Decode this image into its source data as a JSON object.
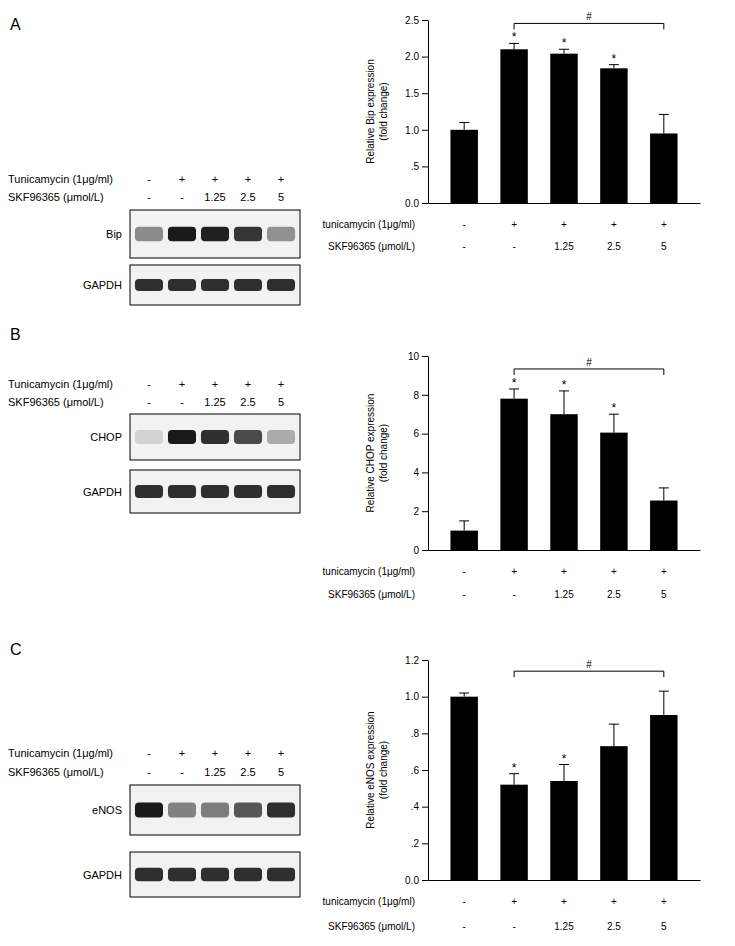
{
  "chart_data": [
    {
      "type": "bar",
      "title": "A",
      "color": "#000000",
      "ylabel": [
        "Relative Bip expression",
        "(fold change)"
      ],
      "categories": [
        null,
        null,
        null,
        null,
        null
      ],
      "values": [
        1.0,
        2.1,
        2.04,
        1.84,
        0.95
      ],
      "errors": [
        0.1,
        0.08,
        0.06,
        0.05,
        0.26
      ],
      "significance": [
        null,
        "*",
        "*",
        "*",
        null
      ],
      "comparison": {
        "from": 1,
        "to": 4,
        "label": "#"
      },
      "ylim": [
        0,
        2.5
      ],
      "yticks": [
        {
          "value": 0,
          "label": "0.0"
        },
        {
          "value": 0.5,
          "label": ".5"
        },
        {
          "value": 1,
          "label": "1.0"
        },
        {
          "value": 1.5,
          "label": "1.5"
        },
        {
          "value": 2,
          "label": "2.0"
        },
        {
          "value": 2.5,
          "label": "2.5"
        }
      ],
      "treatments": [
        {
          "label": "tunicamycin (1μg/ml)",
          "values": [
            "-",
            "+",
            "+",
            "+",
            "+"
          ]
        },
        {
          "label": "SKF96365 (μmol/L)",
          "values": [
            "-",
            "-",
            "1.25",
            "2.5",
            "5"
          ]
        }
      ],
      "blot": {
        "treatments": [
          {
            "label": "Tunicamycin (1μg/ml)",
            "values": [
              "-",
              "+",
              "+",
              "+",
              "+"
            ]
          },
          {
            "label": "SKF96365 (μmol/L)",
            "values": [
              "-",
              "-",
              "1.25",
              "2.5",
              "5"
            ]
          }
        ],
        "bands": [
          "Bip",
          "GAPDH"
        ]
      }
    },
    {
      "type": "bar",
      "title": "B",
      "color": "#000000",
      "ylabel": [
        "Relative CHOP expression",
        "(fold change)"
      ],
      "categories": [
        null,
        null,
        null,
        null,
        null
      ],
      "values": [
        1.0,
        7.8,
        7.0,
        6.05,
        2.55
      ],
      "errors": [
        0.5,
        0.5,
        1.2,
        0.95,
        0.65
      ],
      "significance": [
        null,
        "*",
        "*",
        "*",
        null
      ],
      "comparison": {
        "from": 1,
        "to": 4,
        "label": "#"
      },
      "ylim": [
        0,
        10
      ],
      "yticks": [
        0,
        2,
        4,
        6,
        8,
        10
      ],
      "treatments": [
        {
          "label": "tunicamycin (1μg/ml)",
          "values": [
            "-",
            "+",
            "+",
            "+",
            "+"
          ]
        },
        {
          "label": "SKF96365 (μmol/L)",
          "values": [
            "-",
            "-",
            "1.25",
            "2.5",
            "5"
          ]
        }
      ],
      "blot": {
        "treatments": [
          {
            "label": "Tunicamycin (1μg/ml)",
            "values": [
              "-",
              "+",
              "+",
              "+",
              "+"
            ]
          },
          {
            "label": "SKF96365 (μmol/L)",
            "values": [
              "-",
              "-",
              "1.25",
              "2.5",
              "5"
            ]
          }
        ],
        "bands": [
          "CHOP",
          "GAPDH"
        ]
      }
    },
    {
      "type": "bar",
      "title": "C",
      "color": "#000000",
      "ylabel": [
        "Relative eNOS expression",
        "(fold change)"
      ],
      "categories": [
        null,
        null,
        null,
        null,
        null
      ],
      "values": [
        1.0,
        0.52,
        0.54,
        0.73,
        0.9
      ],
      "errors": [
        0.02,
        0.06,
        0.09,
        0.12,
        0.13
      ],
      "significance": [
        null,
        "*",
        "*",
        null,
        null
      ],
      "comparison": {
        "from": 1,
        "to": 4,
        "label": "#"
      },
      "ylim": [
        0,
        1.2
      ],
      "yticks": [
        {
          "value": 0,
          "label": "0.0"
        },
        {
          "value": 0.2,
          "label": ".2"
        },
        {
          "value": 0.4,
          "label": ".4"
        },
        {
          "value": 0.6,
          "label": ".6"
        },
        {
          "value": 0.8,
          "label": ".8"
        },
        {
          "value": 1,
          "label": "1.0"
        },
        {
          "value": 1.2,
          "label": "1.2"
        }
      ],
      "treatments": [
        {
          "label": "tunicamycin (1μg/ml)",
          "values": [
            "-",
            "+",
            "+",
            "+",
            "+"
          ]
        },
        {
          "label": "SKF96365 (μmol/L)",
          "values": [
            "-",
            "-",
            "1.25",
            "2.5",
            "5"
          ]
        }
      ],
      "blot": {
        "treatments": [
          {
            "label": "Tunicamycin (1μg/ml)",
            "values": [
              "-",
              "+",
              "+",
              "+",
              "+"
            ]
          },
          {
            "label": "SKF96365 (μmol/L)",
            "values": [
              "-",
              "-",
              "1.25",
              "2.5",
              "5"
            ]
          }
        ],
        "bands": [
          "eNOS",
          "GAPDH"
        ]
      }
    }
  ]
}
